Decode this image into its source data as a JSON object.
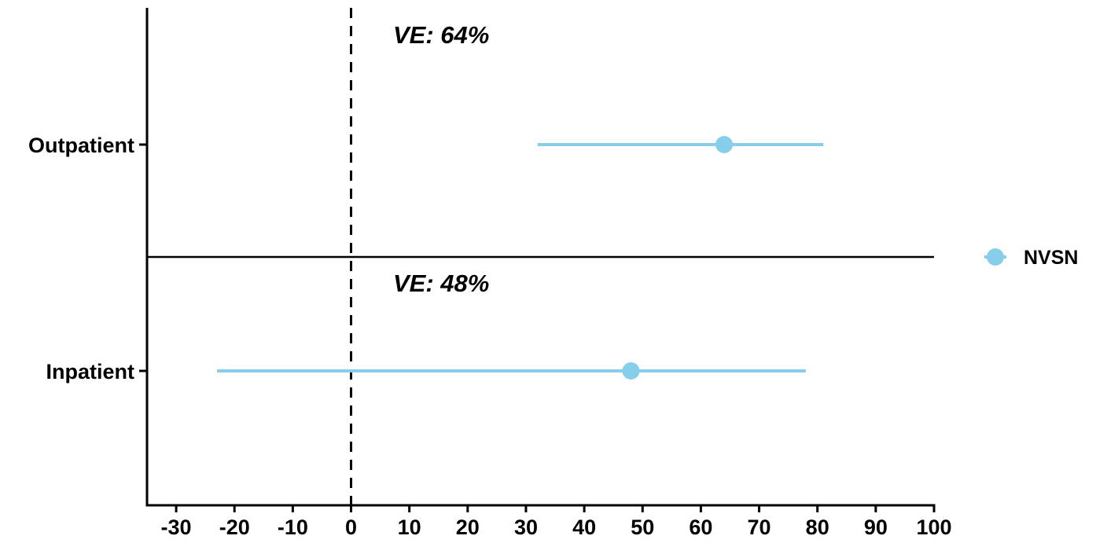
{
  "chart_data": {
    "type": "forest",
    "title": "",
    "xlabel": "",
    "ylabel": "",
    "xlim": [
      -35,
      100
    ],
    "x_ticks": [
      -30,
      -20,
      -10,
      0,
      10,
      20,
      30,
      40,
      50,
      60,
      70,
      80,
      90,
      100
    ],
    "x_tick_labels": [
      "-30",
      "-20",
      "-10",
      "0",
      "10",
      "20",
      "30",
      "40",
      "50",
      "60",
      "70",
      "80",
      "90",
      "100"
    ],
    "reference_line": 0,
    "categories": [
      "Outpatient",
      "Inpatient"
    ],
    "series": [
      {
        "name": "NVSN",
        "color": "#87CEEB",
        "points": [
          {
            "category": "Outpatient",
            "estimate": 64,
            "lower": 32,
            "upper": 81
          },
          {
            "category": "Inpatient",
            "estimate": 48,
            "lower": -23,
            "upper": 78
          }
        ]
      }
    ],
    "annotations": [
      {
        "category": "Outpatient",
        "text": "VE: 64%"
      },
      {
        "category": "Inpatient",
        "text": "VE: 48%"
      }
    ],
    "legend": {
      "position": "right",
      "entries": [
        "NVSN"
      ]
    },
    "grid": false
  }
}
